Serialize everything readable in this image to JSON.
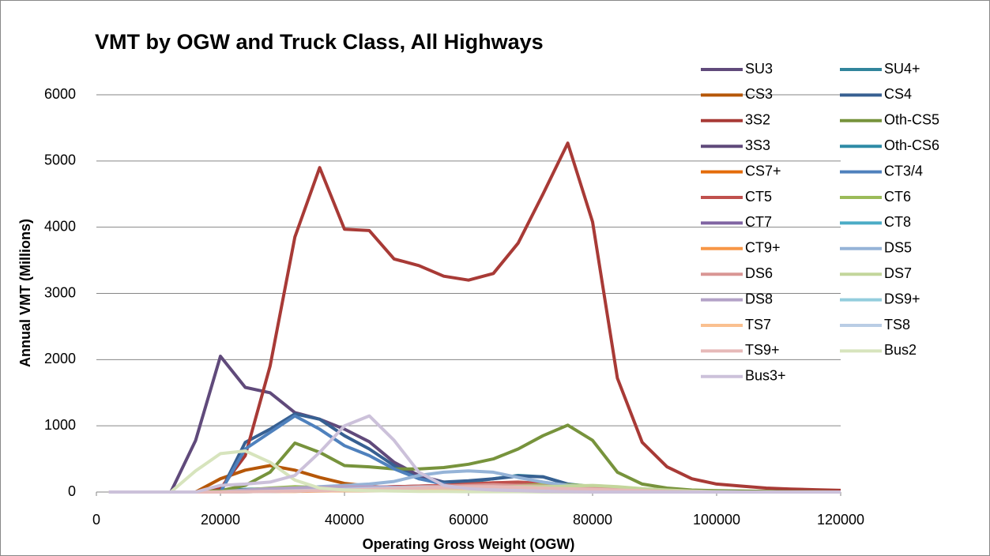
{
  "chart_data": {
    "type": "line",
    "title": "VMT by OGW and Truck Class, All Highways",
    "x_label": "Operating Gross Weight (OGW)",
    "y_label": "Annual VMT (Millions)",
    "x": [
      2000,
      4000,
      8000,
      12000,
      16000,
      20000,
      24000,
      28000,
      32000,
      36000,
      40000,
      44000,
      48000,
      52000,
      56000,
      60000,
      64000,
      68000,
      72000,
      76000,
      80000,
      84000,
      88000,
      92000,
      96000,
      100000,
      104000,
      108000,
      112000,
      116000,
      120000
    ],
    "xlim": [
      0,
      120000
    ],
    "xticks": [
      0,
      20000,
      40000,
      60000,
      80000,
      100000,
      120000
    ],
    "ylim": [
      0,
      6000
    ],
    "yticks": [
      0,
      1000,
      2000,
      3000,
      4000,
      5000,
      6000
    ],
    "grid": true,
    "legend": "right",
    "series": [
      {
        "name": "SU3",
        "color": "#604a7b",
        "values": [
          0,
          0,
          0,
          0,
          780,
          2050,
          1580,
          1500,
          1200,
          1100,
          950,
          760,
          450,
          250,
          150,
          100,
          80,
          70,
          60,
          50,
          40,
          30,
          20,
          10,
          5,
          0,
          0,
          0,
          0,
          0,
          0
        ]
      },
      {
        "name": "SU4+",
        "color": "#31859c",
        "values": [
          0,
          0,
          0,
          0,
          0,
          20,
          40,
          50,
          60,
          60,
          60,
          60,
          60,
          80,
          100,
          150,
          200,
          250,
          230,
          120,
          80,
          50,
          30,
          20,
          10,
          5,
          0,
          0,
          0,
          0,
          0
        ]
      },
      {
        "name": "CS3",
        "color": "#b65708",
        "values": [
          0,
          0,
          0,
          0,
          0,
          200,
          330,
          400,
          330,
          220,
          130,
          90,
          60,
          50,
          50,
          50,
          50,
          45,
          40,
          40,
          35,
          30,
          30,
          25,
          20,
          15,
          10,
          10,
          5,
          5,
          0
        ]
      },
      {
        "name": "CS4",
        "color": "#376092",
        "values": [
          0,
          0,
          0,
          0,
          0,
          0,
          750,
          950,
          1180,
          1100,
          850,
          650,
          400,
          200,
          150,
          170,
          200,
          240,
          230,
          120,
          60,
          30,
          10,
          5,
          0,
          0,
          0,
          0,
          0,
          0,
          0
        ]
      },
      {
        "name": "3S2",
        "color": "#a83a36",
        "values": [
          0,
          0,
          0,
          0,
          0,
          50,
          550,
          1900,
          3850,
          4900,
          3970,
          3950,
          3520,
          3420,
          3260,
          3200,
          3300,
          3760,
          4500,
          5270,
          4080,
          1720,
          750,
          380,
          200,
          120,
          90,
          60,
          45,
          35,
          25
        ]
      },
      {
        "name": "Oth-CS5",
        "color": "#77933c",
        "values": [
          0,
          0,
          0,
          0,
          0,
          20,
          100,
          300,
          740,
          600,
          400,
          380,
          350,
          350,
          370,
          420,
          500,
          650,
          850,
          1010,
          780,
          300,
          120,
          60,
          30,
          20,
          15,
          10,
          5,
          5,
          0
        ]
      },
      {
        "name": "3S3",
        "color": "#5f497a",
        "values": [
          0,
          0,
          0,
          0,
          0,
          10,
          20,
          30,
          40,
          50,
          60,
          70,
          80,
          90,
          100,
          110,
          120,
          130,
          120,
          100,
          80,
          50,
          30,
          20,
          10,
          5,
          0,
          0,
          0,
          0,
          0
        ]
      },
      {
        "name": "Oth-CS6",
        "color": "#2e8ba6",
        "values": [
          0,
          0,
          0,
          0,
          0,
          10,
          20,
          30,
          40,
          40,
          40,
          50,
          50,
          60,
          70,
          80,
          90,
          100,
          90,
          70,
          50,
          30,
          20,
          10,
          5,
          0,
          0,
          0,
          0,
          0,
          0
        ]
      },
      {
        "name": "CS7+",
        "color": "#e46c0a",
        "values": [
          0,
          0,
          0,
          0,
          0,
          0,
          10,
          20,
          30,
          40,
          50,
          60,
          70,
          80,
          90,
          100,
          110,
          100,
          90,
          80,
          60,
          40,
          20,
          10,
          5,
          0,
          0,
          0,
          0,
          0,
          0
        ]
      },
      {
        "name": "CT3/4",
        "color": "#4f81bd",
        "values": [
          0,
          0,
          0,
          0,
          0,
          0,
          650,
          900,
          1150,
          950,
          700,
          550,
          350,
          200,
          120,
          80,
          60,
          50,
          40,
          30,
          20,
          10,
          5,
          0,
          0,
          0,
          0,
          0,
          0,
          0,
          0
        ]
      },
      {
        "name": "CT5",
        "color": "#c0504d",
        "values": [
          0,
          0,
          0,
          0,
          0,
          10,
          20,
          30,
          40,
          50,
          60,
          70,
          80,
          90,
          100,
          120,
          140,
          150,
          130,
          100,
          70,
          40,
          20,
          10,
          5,
          0,
          0,
          0,
          0,
          0,
          0
        ]
      },
      {
        "name": "CT6",
        "color": "#9bbb59",
        "values": [
          0,
          0,
          0,
          0,
          0,
          10,
          30,
          60,
          80,
          70,
          60,
          60,
          60,
          60,
          70,
          80,
          90,
          100,
          110,
          110,
          90,
          60,
          30,
          15,
          5,
          0,
          0,
          0,
          0,
          0,
          0
        ]
      },
      {
        "name": "CT7",
        "color": "#8064a2",
        "values": [
          0,
          0,
          0,
          0,
          0,
          0,
          10,
          15,
          20,
          25,
          30,
          35,
          40,
          45,
          50,
          55,
          60,
          60,
          55,
          50,
          40,
          30,
          20,
          10,
          5,
          0,
          0,
          0,
          0,
          0,
          0
        ]
      },
      {
        "name": "CT8",
        "color": "#4bacc6",
        "values": [
          0,
          0,
          0,
          0,
          0,
          0,
          5,
          10,
          15,
          20,
          25,
          30,
          35,
          40,
          45,
          50,
          50,
          50,
          45,
          40,
          30,
          20,
          10,
          5,
          0,
          0,
          0,
          0,
          0,
          0,
          0
        ]
      },
      {
        "name": "CT9+",
        "color": "#f79646",
        "values": [
          0,
          0,
          0,
          0,
          0,
          0,
          5,
          10,
          10,
          15,
          20,
          20,
          25,
          30,
          30,
          35,
          35,
          35,
          30,
          25,
          20,
          15,
          10,
          5,
          0,
          0,
          0,
          0,
          0,
          0,
          0
        ]
      },
      {
        "name": "DS5",
        "color": "#95b3d7",
        "values": [
          0,
          0,
          0,
          0,
          0,
          0,
          20,
          40,
          60,
          80,
          100,
          120,
          160,
          250,
          300,
          320,
          300,
          220,
          150,
          100,
          80,
          50,
          30,
          20,
          10,
          5,
          0,
          0,
          0,
          0,
          0
        ]
      },
      {
        "name": "DS6",
        "color": "#d99694",
        "values": [
          0,
          0,
          0,
          0,
          0,
          0,
          10,
          20,
          30,
          40,
          50,
          60,
          70,
          80,
          90,
          100,
          110,
          100,
          90,
          80,
          60,
          40,
          20,
          10,
          5,
          0,
          0,
          0,
          0,
          0,
          0
        ]
      },
      {
        "name": "DS7",
        "color": "#c3d69b",
        "values": [
          0,
          0,
          0,
          0,
          0,
          0,
          10,
          20,
          30,
          40,
          40,
          50,
          50,
          60,
          60,
          70,
          70,
          80,
          80,
          90,
          100,
          80,
          50,
          30,
          15,
          5,
          0,
          0,
          0,
          0,
          0
        ]
      },
      {
        "name": "DS8",
        "color": "#b3a2c7",
        "values": [
          0,
          0,
          0,
          0,
          0,
          0,
          30,
          50,
          60,
          70,
          80,
          80,
          70,
          60,
          50,
          40,
          30,
          20,
          15,
          10,
          5,
          0,
          0,
          0,
          0,
          0,
          0,
          0,
          0,
          0,
          0
        ]
      },
      {
        "name": "DS9+",
        "color": "#93cddd",
        "values": [
          0,
          0,
          0,
          0,
          0,
          0,
          5,
          10,
          15,
          20,
          25,
          30,
          30,
          30,
          30,
          30,
          30,
          25,
          20,
          15,
          10,
          5,
          0,
          0,
          0,
          0,
          0,
          0,
          0,
          0,
          0
        ]
      },
      {
        "name": "TS7",
        "color": "#fac090",
        "values": [
          0,
          0,
          0,
          0,
          0,
          0,
          5,
          10,
          15,
          20,
          20,
          20,
          20,
          20,
          20,
          20,
          20,
          20,
          15,
          10,
          5,
          0,
          0,
          0,
          0,
          0,
          0,
          0,
          0,
          0,
          0
        ]
      },
      {
        "name": "TS8",
        "color": "#b9cde5",
        "values": [
          0,
          0,
          0,
          0,
          0,
          0,
          5,
          10,
          20,
          30,
          40,
          50,
          60,
          70,
          70,
          70,
          60,
          50,
          40,
          30,
          20,
          10,
          5,
          0,
          0,
          0,
          0,
          0,
          0,
          0,
          0
        ]
      },
      {
        "name": "TS9+",
        "color": "#e6b9b8",
        "values": [
          0,
          0,
          0,
          0,
          0,
          0,
          5,
          10,
          15,
          20,
          30,
          40,
          50,
          60,
          70,
          80,
          80,
          70,
          60,
          50,
          40,
          30,
          20,
          10,
          5,
          0,
          0,
          0,
          0,
          0,
          0
        ]
      },
      {
        "name": "Bus2",
        "color": "#d7e4bd",
        "values": [
          0,
          0,
          0,
          0,
          320,
          580,
          620,
          450,
          180,
          60,
          30,
          20,
          15,
          10,
          10,
          5,
          5,
          5,
          0,
          0,
          0,
          0,
          0,
          0,
          0,
          0,
          0,
          0,
          0,
          0,
          0
        ]
      },
      {
        "name": "Bus3+",
        "color": "#ccc1da",
        "values": [
          0,
          0,
          0,
          0,
          0,
          100,
          120,
          150,
          250,
          600,
          1000,
          1150,
          780,
          300,
          100,
          50,
          30,
          20,
          10,
          5,
          0,
          0,
          0,
          0,
          0,
          0,
          0,
          0,
          0,
          0,
          0
        ]
      }
    ]
  }
}
